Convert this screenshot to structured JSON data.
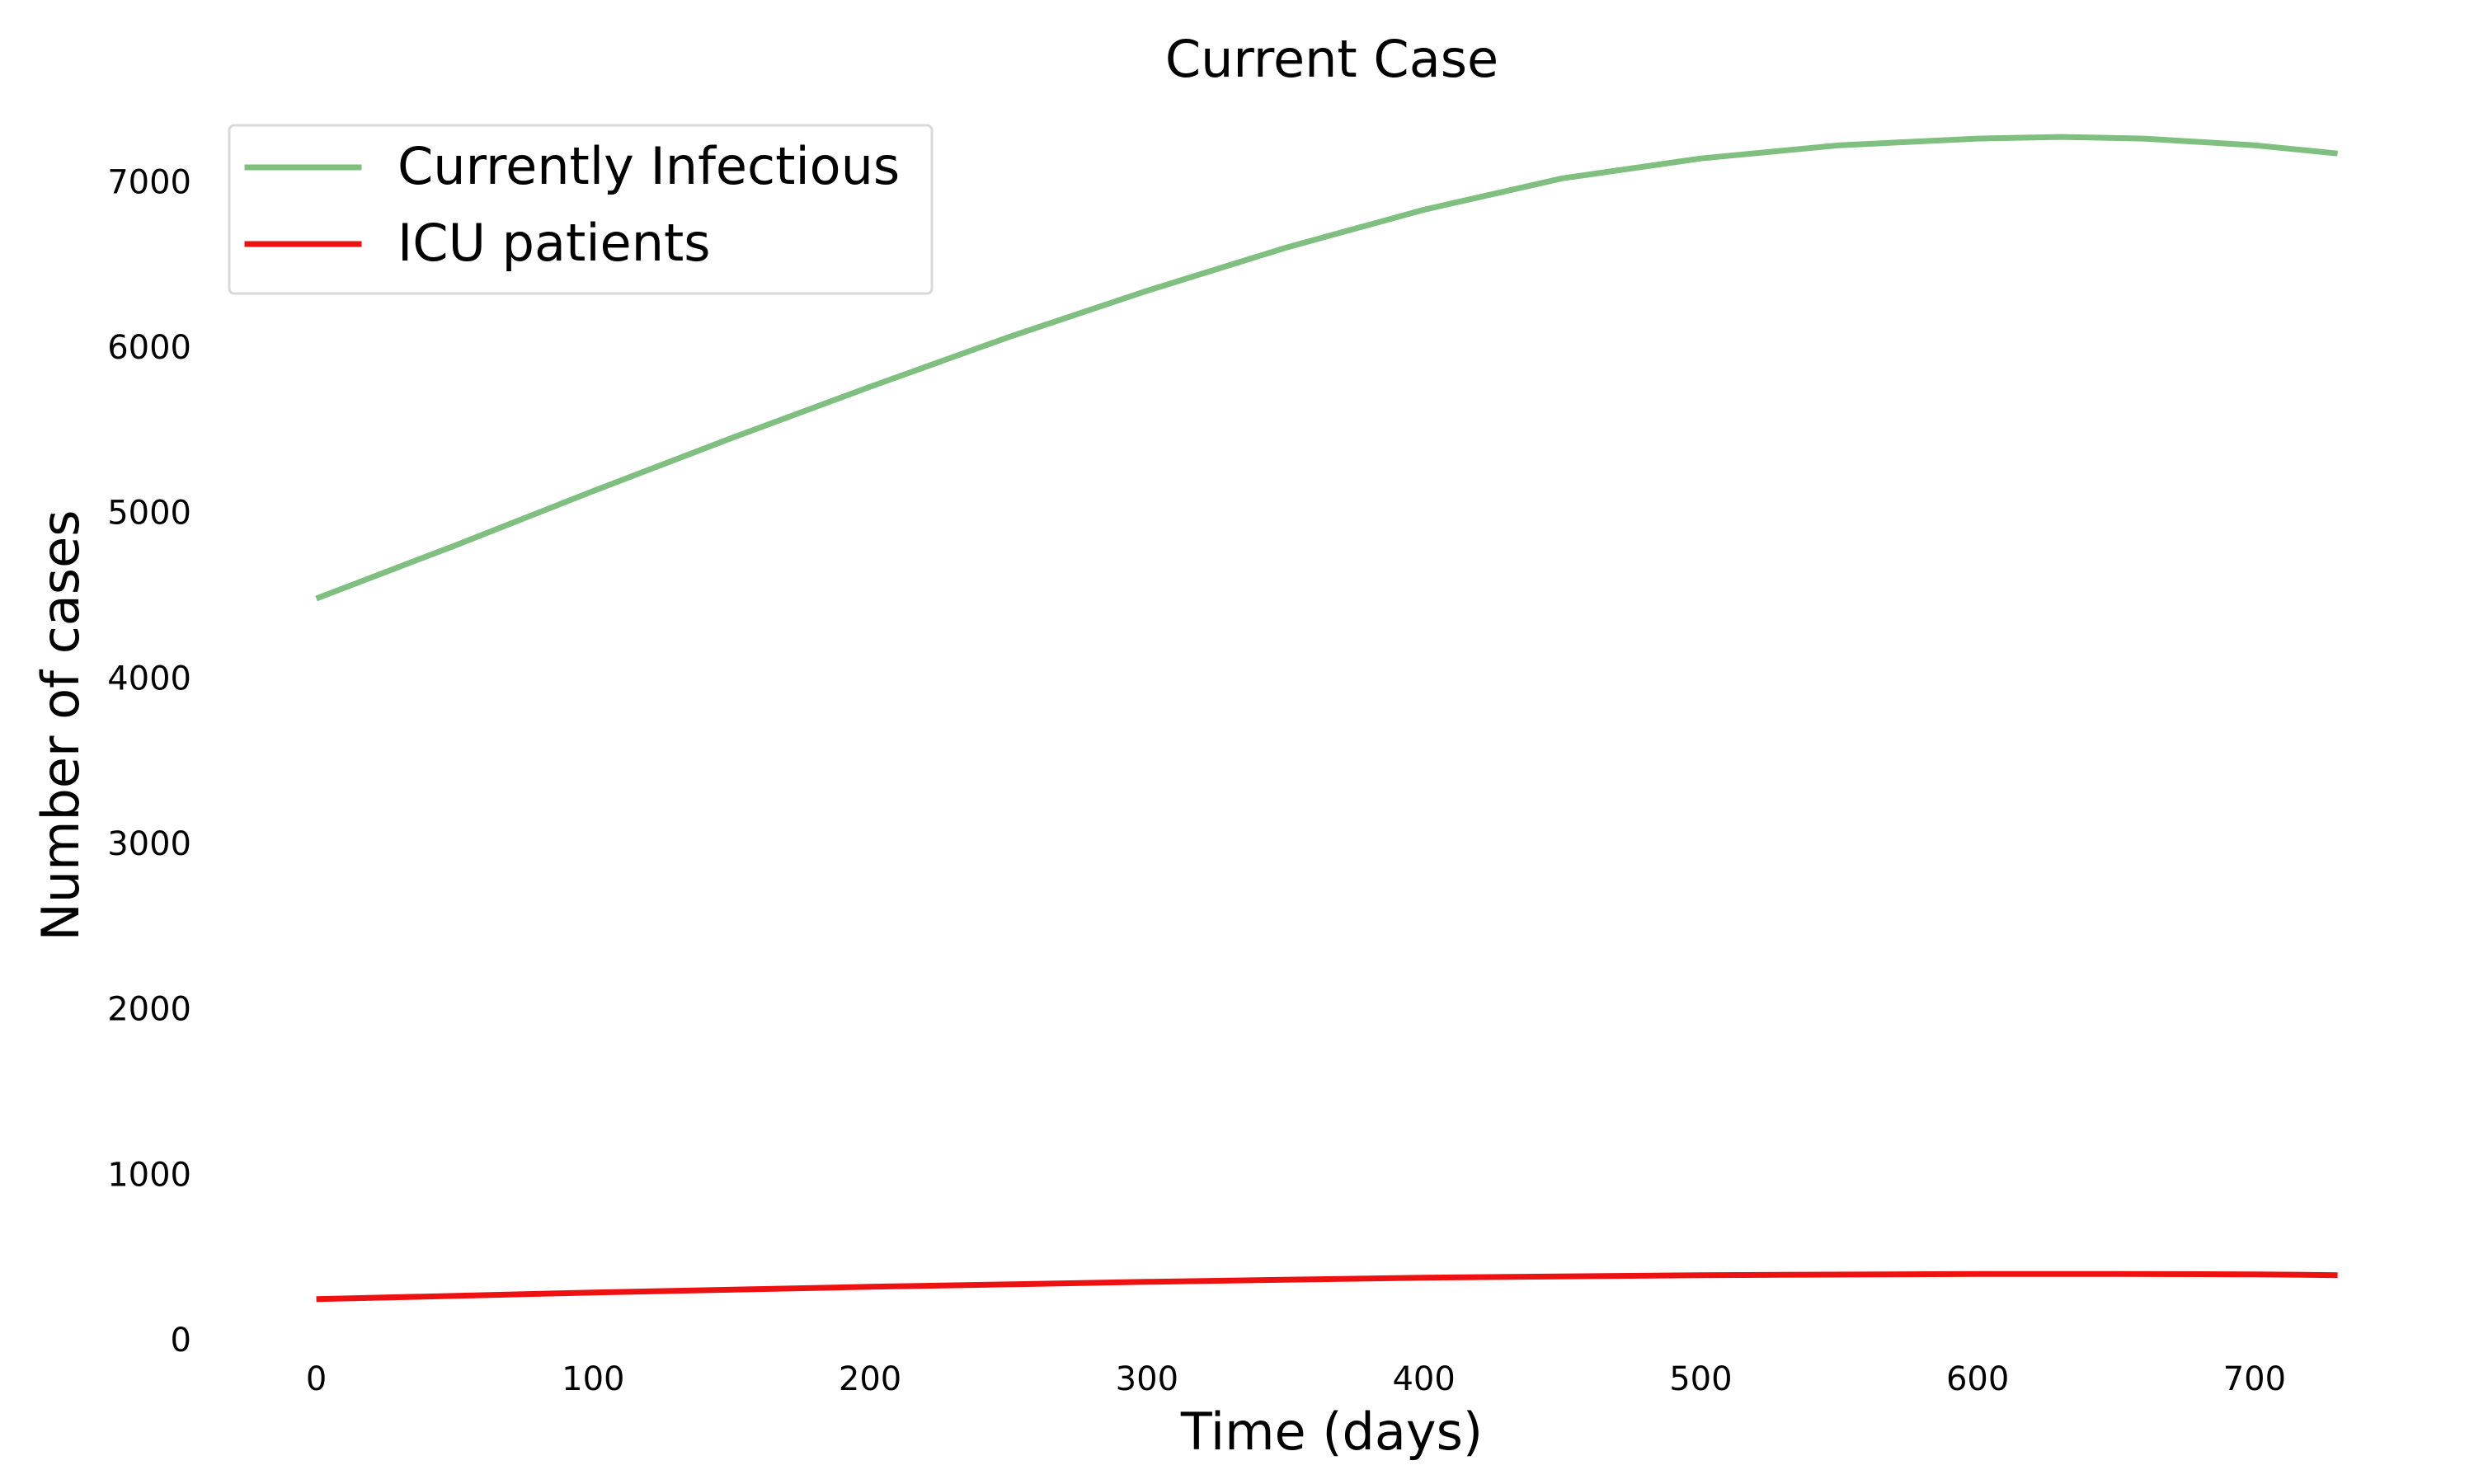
{
  "chart_data": {
    "type": "line",
    "title": "Current Case",
    "xlabel": "Time (days)",
    "ylabel": "Number of cases",
    "xlim": [
      -10,
      745
    ],
    "ylim": [
      0,
      7450
    ],
    "x_ticks": [
      0,
      100,
      200,
      300,
      400,
      500,
      600,
      700
    ],
    "y_ticks": [
      0,
      1000,
      2000,
      3000,
      4000,
      5000,
      6000,
      7000
    ],
    "grid": false,
    "legend_position": "top-left",
    "series": [
      {
        "name": "Currently Infectious",
        "color": "#7fbf7f",
        "x": [
          0,
          50,
          100,
          150,
          200,
          250,
          300,
          350,
          400,
          450,
          500,
          550,
          600,
          630,
          660,
          700,
          730
        ],
        "y": [
          4480,
          4800,
          5130,
          5450,
          5760,
          6060,
          6340,
          6600,
          6830,
          7020,
          7140,
          7220,
          7260,
          7270,
          7260,
          7220,
          7170
        ]
      },
      {
        "name": "ICU patients",
        "color": "#ee1111",
        "x": [
          0,
          100,
          200,
          300,
          400,
          500,
          600,
          650,
          700,
          730
        ],
        "y": [
          245,
          285,
          320,
          350,
          375,
          390,
          397,
          397,
          395,
          390
        ]
      }
    ]
  }
}
